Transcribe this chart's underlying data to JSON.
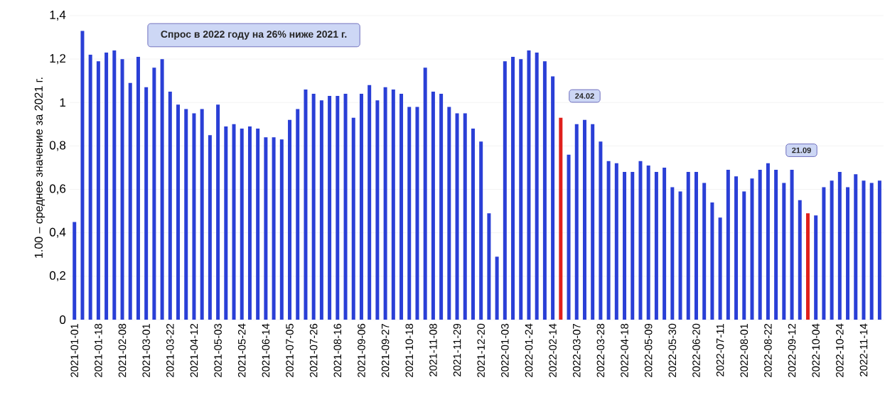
{
  "chart_data": {
    "type": "bar",
    "ylabel": "1.00 – среднее значение за 2021 г.",
    "categories": [
      "2021-01-01",
      null,
      null,
      "2021-01-18",
      null,
      null,
      "2021-02-08",
      null,
      null,
      "2021-03-01",
      null,
      null,
      "2021-03-22",
      null,
      null,
      "2021-04-12",
      null,
      null,
      "2021-05-03",
      null,
      null,
      "2021-05-24",
      null,
      null,
      "2021-06-14",
      null,
      null,
      "2021-07-05",
      null,
      null,
      "2021-07-26",
      null,
      null,
      "2021-08-16",
      null,
      null,
      "2021-09-06",
      null,
      null,
      "2021-09-27",
      null,
      null,
      "2021-10-18",
      null,
      null,
      "2021-11-08",
      null,
      null,
      "2021-11-29",
      null,
      null,
      "2021-12-20",
      null,
      null,
      "2022-01-03",
      null,
      null,
      "2022-01-24",
      null,
      null,
      "2022-02-14",
      null,
      null,
      "2022-03-07",
      null,
      null,
      "2022-03-28",
      null,
      null,
      "2022-04-18",
      null,
      null,
      "2022-05-09",
      null,
      null,
      "2022-05-30",
      null,
      null,
      "2022-06-20",
      null,
      null,
      "2022-07-11",
      null,
      null,
      "2022-08-01",
      null,
      null,
      "2022-08-22",
      null,
      null,
      "2022-09-12",
      null,
      null,
      "2022-10-04",
      null,
      null,
      "2022-10-24",
      null,
      null,
      "2022-11-14",
      null,
      null
    ],
    "values": [
      0.45,
      1.33,
      1.22,
      1.19,
      1.23,
      1.24,
      1.2,
      1.09,
      1.21,
      1.07,
      1.16,
      1.2,
      1.05,
      0.99,
      0.97,
      0.95,
      0.97,
      0.85,
      0.99,
      0.89,
      0.9,
      0.88,
      0.89,
      0.88,
      0.84,
      0.84,
      0.83,
      0.92,
      0.97,
      1.06,
      1.04,
      1.01,
      1.03,
      1.03,
      1.04,
      0.93,
      1.04,
      1.08,
      1.01,
      1.07,
      1.06,
      1.04,
      0.98,
      0.98,
      1.16,
      1.05,
      1.04,
      0.98,
      0.95,
      0.95,
      0.88,
      0.82,
      0.49,
      0.29,
      1.19,
      1.21,
      1.2,
      1.24,
      1.23,
      1.19,
      1.12,
      0.93,
      0.76,
      0.9,
      0.92,
      0.9,
      0.82,
      0.73,
      0.72,
      0.68,
      0.68,
      0.73,
      0.71,
      0.68,
      0.7,
      0.61,
      0.59,
      0.68,
      0.68,
      0.63,
      0.54,
      0.47,
      0.69,
      0.66,
      0.59,
      0.65,
      0.69,
      0.72,
      0.69,
      0.63,
      0.69,
      0.55,
      0.49,
      0.48,
      0.61,
      0.64,
      0.68,
      0.61,
      0.67,
      0.64,
      0.63,
      0.64
    ],
    "colors": [
      "#2a3fd6",
      "#2a3fd6",
      "#2a3fd6",
      "#2a3fd6",
      "#2a3fd6",
      "#2a3fd6",
      "#2a3fd6",
      "#2a3fd6",
      "#2a3fd6",
      "#2a3fd6",
      "#2a3fd6",
      "#2a3fd6",
      "#2a3fd6",
      "#2a3fd6",
      "#2a3fd6",
      "#2a3fd6",
      "#2a3fd6",
      "#2a3fd6",
      "#2a3fd6",
      "#2a3fd6",
      "#2a3fd6",
      "#2a3fd6",
      "#2a3fd6",
      "#2a3fd6",
      "#2a3fd6",
      "#2a3fd6",
      "#2a3fd6",
      "#2a3fd6",
      "#2a3fd6",
      "#2a3fd6",
      "#2a3fd6",
      "#2a3fd6",
      "#2a3fd6",
      "#2a3fd6",
      "#2a3fd6",
      "#2a3fd6",
      "#2a3fd6",
      "#2a3fd6",
      "#2a3fd6",
      "#2a3fd6",
      "#2a3fd6",
      "#2a3fd6",
      "#2a3fd6",
      "#2a3fd6",
      "#2a3fd6",
      "#2a3fd6",
      "#2a3fd6",
      "#2a3fd6",
      "#2a3fd6",
      "#2a3fd6",
      "#2a3fd6",
      "#2a3fd6",
      "#2a3fd6",
      "#2a3fd6",
      "#2a3fd6",
      "#2a3fd6",
      "#2a3fd6",
      "#2a3fd6",
      "#2a3fd6",
      "#2a3fd6",
      "#2a3fd6",
      "#e0201c",
      "#2a3fd6",
      "#2a3fd6",
      "#2a3fd6",
      "#2a3fd6",
      "#2a3fd6",
      "#2a3fd6",
      "#2a3fd6",
      "#2a3fd6",
      "#2a3fd6",
      "#2a3fd6",
      "#2a3fd6",
      "#2a3fd6",
      "#2a3fd6",
      "#2a3fd6",
      "#2a3fd6",
      "#2a3fd6",
      "#2a3fd6",
      "#2a3fd6",
      "#2a3fd6",
      "#2a3fd6",
      "#2a3fd6",
      "#2a3fd6",
      "#2a3fd6",
      "#2a3fd6",
      "#2a3fd6",
      "#2a3fd6",
      "#2a3fd6",
      "#2a3fd6",
      "#2a3fd6",
      "#2a3fd6",
      "#e0201c",
      "#2a3fd6",
      "#2a3fd6",
      "#2a3fd6",
      "#2a3fd6",
      "#2a3fd6",
      "#2a3fd6",
      "#2a3fd6",
      "#2a3fd6",
      "#2a3fd6"
    ],
    "ylim": [
      0,
      1.4
    ],
    "yticks": [
      0,
      {
        "value": 0.2,
        "label": "0,2"
      },
      {
        "value": 0.4,
        "label": "0,4"
      },
      {
        "value": 0.6,
        "label": "0,6"
      },
      {
        "value": 0.8,
        "label": "0,8"
      },
      1,
      {
        "value": 1.2,
        "label": "1,2"
      },
      {
        "value": 1.4,
        "label": "1,4"
      }
    ],
    "grid": "y",
    "annotations": [
      "Спрос в 2022 году на 26% ниже 2021 г.",
      "24.02",
      "21.09"
    ]
  }
}
